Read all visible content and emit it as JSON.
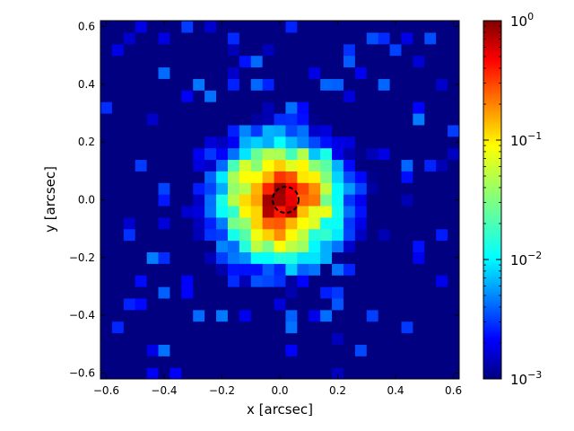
{
  "chart_data": {
    "type": "heatmap",
    "title": "",
    "xlabel": "x [arcsec]",
    "ylabel": "y [arcsec]",
    "xlim": [
      -0.62,
      0.62
    ],
    "ylim": [
      -0.62,
      0.62
    ],
    "xticks": [
      -0.6,
      -0.4,
      -0.2,
      0.0,
      0.2,
      0.4,
      0.6
    ],
    "yticks": [
      -0.6,
      -0.4,
      -0.2,
      0.0,
      0.2,
      0.4,
      0.6
    ],
    "xtick_labels": [
      "−0.6",
      "−0.4",
      "−0.2",
      "0.0",
      "0.2",
      "0.4",
      "0.6"
    ],
    "ytick_labels": [
      "−0.6",
      "−0.4",
      "−0.2",
      "0.0",
      "0.2",
      "0.4",
      "0.6"
    ],
    "colorscale": "jet",
    "color_scale_type": "log",
    "color_range": [
      0.001,
      1
    ],
    "colorbar_ticks": [
      {
        "value": 1,
        "base": "10",
        "exp": "0"
      },
      {
        "value": 0.1,
        "base": "10",
        "exp": "−1"
      },
      {
        "value": 0.01,
        "base": "10",
        "exp": "−2"
      },
      {
        "value": 0.001,
        "base": "10",
        "exp": "−3"
      }
    ],
    "pixel_size_arcsec": 0.04,
    "peak_position": [
      0.0,
      0.0
    ],
    "peak_value": 1.0,
    "annotation": {
      "type": "dashed-circle",
      "center": [
        0.02,
        0.0
      ],
      "radius": 0.045
    },
    "values_note": "Centrally peaked distribution declining from ~1 at the center to ~1e-3 at about 0.35 arcsec, with sparse noisy low-level pixels at larger radii."
  }
}
